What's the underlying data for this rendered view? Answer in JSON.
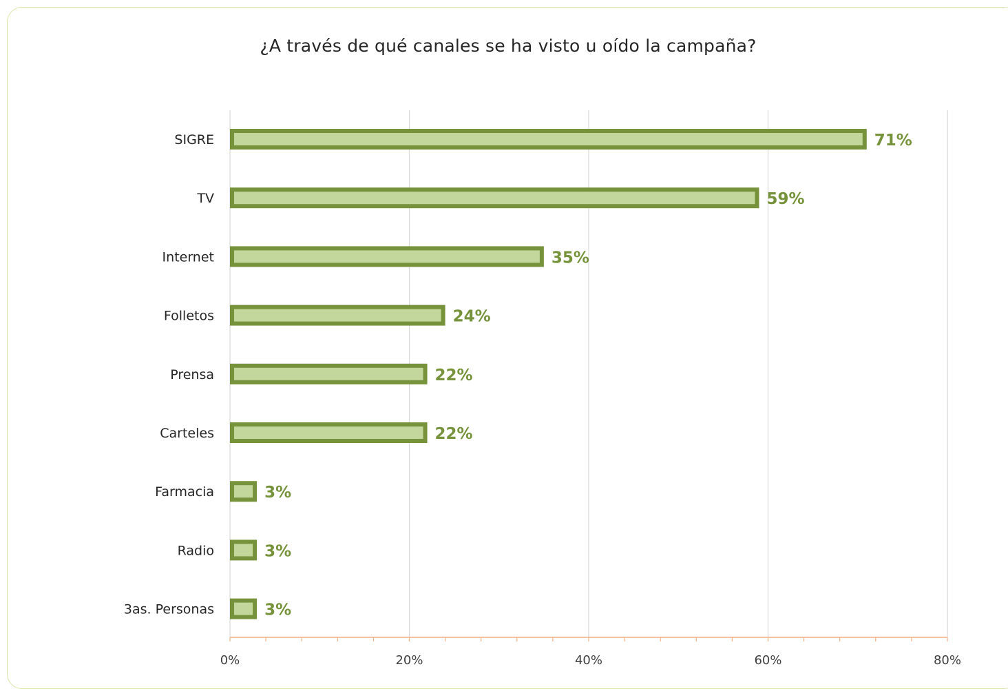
{
  "colors": {
    "bar_outline": "#76933c",
    "bar_fill": "#c3d69b",
    "data_label": "#76933c",
    "gridline": "#d9d9d9",
    "axis": "#f4b183",
    "frame_border": "#d8e4a8"
  },
  "chart_data": {
    "type": "bar",
    "orientation": "horizontal",
    "title": "¿A través de qué canales se ha visto u oído la campaña?",
    "categories": [
      "SIGRE",
      "TV",
      "Internet",
      "Folletos",
      "Prensa",
      "Carteles",
      "Farmacia",
      "Radio",
      "3as. Personas"
    ],
    "values": [
      71,
      59,
      35,
      24,
      22,
      22,
      3,
      3,
      3
    ],
    "value_labels": [
      "71%",
      "59%",
      "35%",
      "24%",
      "22%",
      "22%",
      "3%",
      "3%",
      "3%"
    ],
    "xlim": [
      0,
      80
    ],
    "xticks": [
      0,
      20,
      40,
      60,
      80
    ],
    "xtick_labels": [
      "0%",
      "20%",
      "40%",
      "60%",
      "80%"
    ],
    "grid": true,
    "legend": "none"
  }
}
